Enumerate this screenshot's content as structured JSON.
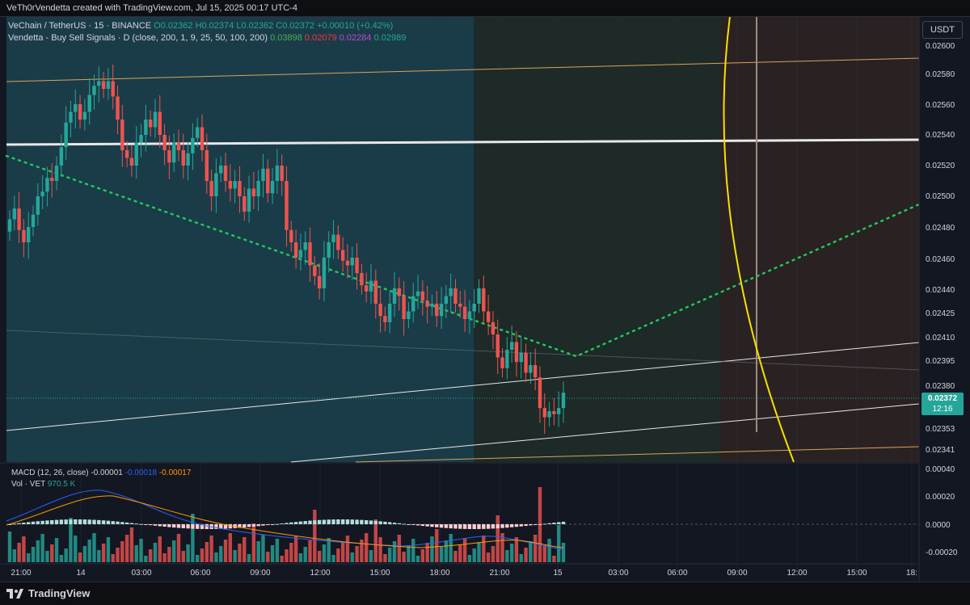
{
  "header": {
    "author_line": "VeTh0rVendetta created with TradingView.com, Jul 15, 2025 00:17 UTC-4",
    "symbol": "VeChain / TetherUS · 15 · BINANCE",
    "ohlc": {
      "open": "O0.02362",
      "high": "H0.02374",
      "low": "L0.02362",
      "close": "C0.02372",
      "change": "+0.00010 (+0.42%)"
    },
    "indicator": "Vendetta - Buy Sell Signals · D (close, 200, 1, 9, 25, 50, 100, 200)",
    "indicator_values": [
      "0.03898",
      "0.02079",
      "0.02284",
      "0.02989"
    ],
    "indicator_colors": [
      "#4caf50",
      "#f23645",
      "#9c27b0",
      "#26a69a"
    ]
  },
  "currency": "USDT",
  "last_price": {
    "price": "0.02372",
    "countdown": "12:16"
  },
  "macd": {
    "label": "MACD (12, 26, close)",
    "values": [
      "-0.00001",
      "-0.00018",
      "-0.00017"
    ],
    "colors": [
      "#d1d4dc",
      "#2962ff",
      "#ff9800"
    ]
  },
  "volume": {
    "label": "Vol · VET",
    "value": "970.5 K"
  },
  "branding": "TradingView",
  "colors": {
    "up": "#26a69a",
    "down": "#ef5350",
    "bg": "#131722",
    "zone_teal": "#1a3c48",
    "zone_dark": "#1d2a27",
    "zone_brown": "#2a2222",
    "dots": "#22c55e",
    "curve": "#f5e100"
  },
  "chart_data": {
    "type": "candlestick",
    "price_axis": {
      "ticks": [
        "0.02600",
        "0.02580",
        "0.02560",
        "0.02540",
        "0.02520",
        "0.02500",
        "0.02480",
        "0.02460",
        "0.02440",
        "0.02425",
        "0.02410",
        "0.02395",
        "0.02380",
        "0.02353",
        "0.02341"
      ]
    },
    "macd_axis": {
      "ticks": [
        "0.00040",
        "0.00020",
        "0.0000",
        "-0.00020"
      ]
    },
    "time_axis": {
      "ticks": [
        "21:00",
        "14",
        "03:00",
        "06:00",
        "09:00",
        "12:00",
        "15:00",
        "18:00",
        "21:00",
        "15",
        "03:00",
        "06:00",
        "09:00",
        "12:00",
        "15:00",
        "18:"
      ]
    },
    "candles_close": [
      0.02485,
      0.02492,
      0.02478,
      0.0247,
      0.0248,
      0.02488,
      0.025,
      0.02503,
      0.02512,
      0.0251,
      0.0252,
      0.02532,
      0.02548,
      0.02555,
      0.0256,
      0.0255,
      0.02555,
      0.02566,
      0.02572,
      0.02575,
      0.0257,
      0.02575,
      0.02565,
      0.0255,
      0.0253,
      0.02525,
      0.0252,
      0.02535,
      0.0254,
      0.0255,
      0.02545,
      0.02555,
      0.0254,
      0.0253,
      0.02522,
      0.02535,
      0.0253,
      0.0252,
      0.02528,
      0.02538,
      0.02545,
      0.0253,
      0.0251,
      0.025,
      0.02515,
      0.0252,
      0.0251,
      0.02505,
      0.0251,
      0.025,
      0.0249,
      0.02505,
      0.025,
      0.0251,
      0.02518,
      0.02502,
      0.0251,
      0.0252,
      0.0251,
      0.02478,
      0.0247,
      0.0246,
      0.02465,
      0.0247,
      0.02455,
      0.02448,
      0.0244,
      0.0246,
      0.0247,
      0.02475,
      0.02465,
      0.02458,
      0.02455,
      0.0246,
      0.0245,
      0.02442,
      0.02438,
      0.02445,
      0.0243,
      0.02422,
      0.02418,
      0.0243,
      0.0244,
      0.02435,
      0.0242,
      0.02425,
      0.02435,
      0.02438,
      0.02432,
      0.02428,
      0.0243,
      0.02422,
      0.0243,
      0.02435,
      0.0244,
      0.0243,
      0.02428,
      0.0242,
      0.02425,
      0.0243,
      0.0244,
      0.02425,
      0.02418,
      0.0241,
      0.02395,
      0.02388,
      0.024,
      0.02405,
      0.02392,
      0.02398,
      0.02385,
      0.0239,
      0.02382,
      0.02362,
      0.02356,
      0.0236,
      0.02358,
      0.02362,
      0.02372
    ]
  }
}
